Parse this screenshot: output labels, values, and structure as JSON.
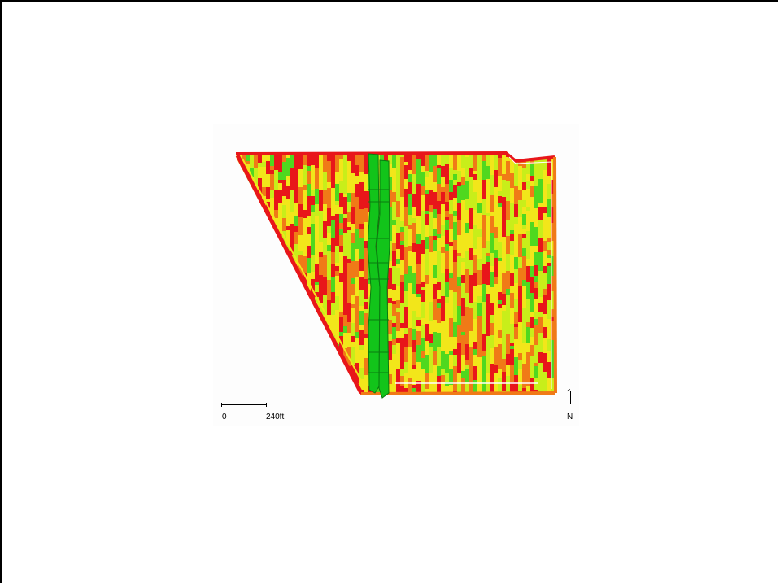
{
  "map": {
    "scale": {
      "start_label": "0",
      "end_label": "240ft"
    },
    "north_label": "N",
    "legend_colors": [
      "#e8161a",
      "#f07a17",
      "#f2e61a",
      "#c8ee1a",
      "#4fd81f"
    ],
    "highlight_color": "#12c41a"
  }
}
